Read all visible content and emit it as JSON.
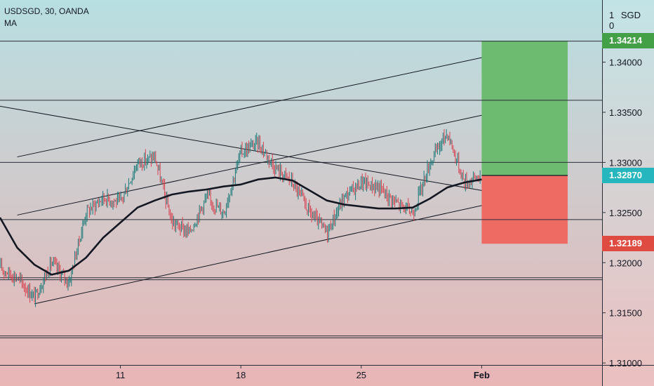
{
  "legend": {
    "symbol_line": "USDSGD, 30, OANDA",
    "indicator": "MA"
  },
  "price_scale": {
    "currency": "SGD",
    "top_tick": "1",
    "zero": "0"
  },
  "badges": {
    "target": "1.34214",
    "current": "1.32870",
    "stop": "1.32189"
  },
  "colors": {
    "bg_top": "#b8dfe2",
    "bg_bottom": "#e9b5b5",
    "profit_zone": "#6dbb71",
    "loss_zone": "#ee6b64",
    "target_badge": "#43a047",
    "current_badge": "#26b6bd",
    "stop_badge": "#e04b41",
    "candle_up": "#1b7a78",
    "candle_down": "#d64250",
    "line": "#131722"
  },
  "chart_data": {
    "type": "candlestick",
    "instrument": "USDSGD",
    "timeframe": "30",
    "source": "OANDA",
    "ylim": [
      1.3098,
      1.3462
    ],
    "xlim": [
      "2021-01-04",
      "2021-02-08"
    ],
    "y_ticks": [
      "1.34000",
      "1.33500",
      "1.33000",
      "1.32500",
      "1.32000",
      "1.31500",
      "1.31000"
    ],
    "x_ticks": [
      {
        "date": "2021-01-11",
        "label": "11",
        "bold": false
      },
      {
        "date": "2021-01-18",
        "label": "18",
        "bold": false
      },
      {
        "date": "2021-01-25",
        "label": "25",
        "bold": false
      },
      {
        "date": "2021-02-01",
        "label": "Feb",
        "bold": true
      }
    ],
    "close_path": [
      {
        "t": "2021-01-04",
        "y": 1.3195
      },
      {
        "t": "2021-01-05",
        "y": 1.3185
      },
      {
        "t": "2021-01-06",
        "y": 1.3165
      },
      {
        "t": "2021-01-07",
        "y": 1.32
      },
      {
        "t": "2021-01-08",
        "y": 1.318
      },
      {
        "t": "2021-01-09",
        "y": 1.325
      },
      {
        "t": "2021-01-10",
        "y": 1.3265
      },
      {
        "t": "2021-01-11",
        "y": 1.326
      },
      {
        "t": "2021-01-12",
        "y": 1.33
      },
      {
        "t": "2021-01-13",
        "y": 1.3305
      },
      {
        "t": "2021-01-14",
        "y": 1.324
      },
      {
        "t": "2021-01-15",
        "y": 1.323
      },
      {
        "t": "2021-01-16",
        "y": 1.3265
      },
      {
        "t": "2021-01-17",
        "y": 1.325
      },
      {
        "t": "2021-01-18",
        "y": 1.331
      },
      {
        "t": "2021-01-19",
        "y": 1.332
      },
      {
        "t": "2021-01-20",
        "y": 1.3295
      },
      {
        "t": "2021-01-21",
        "y": 1.328
      },
      {
        "t": "2021-01-22",
        "y": 1.325
      },
      {
        "t": "2021-01-23",
        "y": 1.323
      },
      {
        "t": "2021-01-24",
        "y": 1.3265
      },
      {
        "t": "2021-01-25",
        "y": 1.328
      },
      {
        "t": "2021-01-26",
        "y": 1.3275
      },
      {
        "t": "2021-01-27",
        "y": 1.326
      },
      {
        "t": "2021-01-28",
        "y": 1.325
      },
      {
        "t": "2021-01-29",
        "y": 1.33
      },
      {
        "t": "2021-01-30",
        "y": 1.333
      },
      {
        "t": "2021-01-31",
        "y": 1.328
      },
      {
        "t": "2021-02-01",
        "y": 1.3287
      }
    ],
    "ma": [
      {
        "t": "2021-01-04",
        "y": 1.3245
      },
      {
        "t": "2021-01-05",
        "y": 1.3215
      },
      {
        "t": "2021-01-06",
        "y": 1.3198
      },
      {
        "t": "2021-01-07",
        "y": 1.3188
      },
      {
        "t": "2021-01-08",
        "y": 1.3192
      },
      {
        "t": "2021-01-09",
        "y": 1.3205
      },
      {
        "t": "2021-01-10",
        "y": 1.3225
      },
      {
        "t": "2021-01-11",
        "y": 1.324
      },
      {
        "t": "2021-01-12",
        "y": 1.3255
      },
      {
        "t": "2021-01-13",
        "y": 1.3262
      },
      {
        "t": "2021-01-14",
        "y": 1.3268
      },
      {
        "t": "2021-01-15",
        "y": 1.3271
      },
      {
        "t": "2021-01-16",
        "y": 1.3273
      },
      {
        "t": "2021-01-17",
        "y": 1.3276
      },
      {
        "t": "2021-01-18",
        "y": 1.3278
      },
      {
        "t": "2021-01-19",
        "y": 1.3283
      },
      {
        "t": "2021-01-20",
        "y": 1.3285
      },
      {
        "t": "2021-01-21",
        "y": 1.3282
      },
      {
        "t": "2021-01-22",
        "y": 1.3272
      },
      {
        "t": "2021-01-23",
        "y": 1.3262
      },
      {
        "t": "2021-01-24",
        "y": 1.3258
      },
      {
        "t": "2021-01-25",
        "y": 1.3256
      },
      {
        "t": "2021-01-26",
        "y": 1.3254
      },
      {
        "t": "2021-01-27",
        "y": 1.3254
      },
      {
        "t": "2021-01-28",
        "y": 1.3255
      },
      {
        "t": "2021-01-29",
        "y": 1.3264
      },
      {
        "t": "2021-01-30",
        "y": 1.3275
      },
      {
        "t": "2021-01-31",
        "y": 1.328
      },
      {
        "t": "2021-02-01",
        "y": 1.3283
      }
    ],
    "horizontal_levels": [
      1.3421,
      1.3362,
      1.33,
      1.3243,
      1.3185,
      1.3183,
      1.3127,
      1.3125
    ],
    "trend_lines": [
      {
        "from": {
          "t": "2021-01-05",
          "y": 1.33055
        },
        "to": {
          "t": "2021-02-01",
          "y": 1.34045
        }
      },
      {
        "from": {
          "t": "2021-01-05",
          "y": 1.32475
        },
        "to": {
          "t": "2021-02-01",
          "y": 1.3347
        }
      },
      {
        "from": {
          "t": "2021-01-06",
          "y": 1.3159
        },
        "to": {
          "t": "2021-02-01",
          "y": 1.3257
        }
      },
      {
        "from": {
          "t": "2021-01-04",
          "y": 1.3356
        },
        "to": {
          "t": "2021-02-01",
          "y": 1.3272
        }
      }
    ],
    "position": {
      "start": "2021-02-01",
      "end": "2021-02-06",
      "entry": 1.3287,
      "target": 1.34214,
      "stop": 1.32189
    }
  }
}
